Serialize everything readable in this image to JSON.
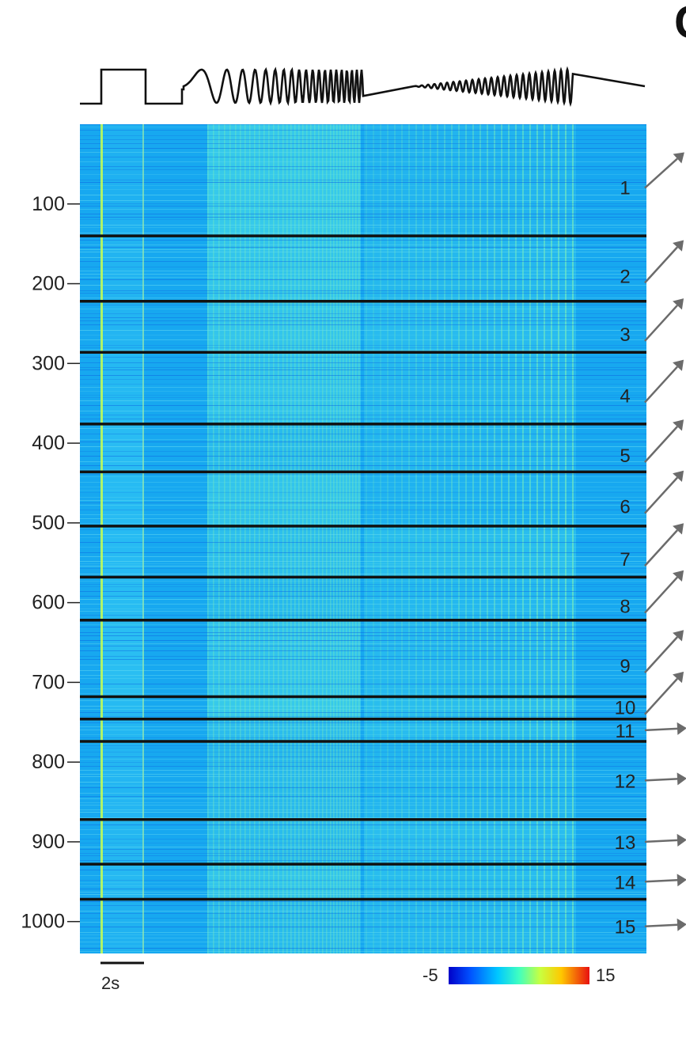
{
  "panel_letter": "C",
  "chart_data": {
    "type": "heatmap",
    "title": "",
    "xlabel": "",
    "ylabel": "",
    "y_ticks": [
      100,
      200,
      300,
      400,
      500,
      600,
      700,
      800,
      900,
      1000
    ],
    "ylim": [
      0,
      1040
    ],
    "cluster_boundaries": [
      140,
      222,
      286,
      376,
      436,
      504,
      568,
      622,
      718,
      746,
      774,
      872,
      928,
      972
    ],
    "clusters": [
      {
        "label": "1",
        "start": 0,
        "end": 140
      },
      {
        "label": "2",
        "start": 140,
        "end": 222
      },
      {
        "label": "3",
        "start": 222,
        "end": 286
      },
      {
        "label": "4",
        "start": 286,
        "end": 376
      },
      {
        "label": "5",
        "start": 376,
        "end": 436
      },
      {
        "label": "6",
        "start": 436,
        "end": 504
      },
      {
        "label": "7",
        "start": 504,
        "end": 568
      },
      {
        "label": "8",
        "start": 568,
        "end": 622
      },
      {
        "label": "9",
        "start": 622,
        "end": 718
      },
      {
        "label": "10",
        "start": 718,
        "end": 746
      },
      {
        "label": "11",
        "start": 746,
        "end": 774
      },
      {
        "label": "12",
        "start": 774,
        "end": 872
      },
      {
        "label": "13",
        "start": 872,
        "end": 928
      },
      {
        "label": "14",
        "start": 928,
        "end": 972
      },
      {
        "label": "15",
        "start": 972,
        "end": 1040
      }
    ],
    "colorbar": {
      "min_label": "-5",
      "max_label": "15",
      "min": -5,
      "max": 15,
      "colormap": "jet"
    },
    "scale_bar_label": "2s",
    "stimulus_trace": [
      "baseline",
      "step",
      "baseline",
      "chirp",
      "baseline",
      "amplitude-modulated sine",
      "baseline"
    ]
  }
}
